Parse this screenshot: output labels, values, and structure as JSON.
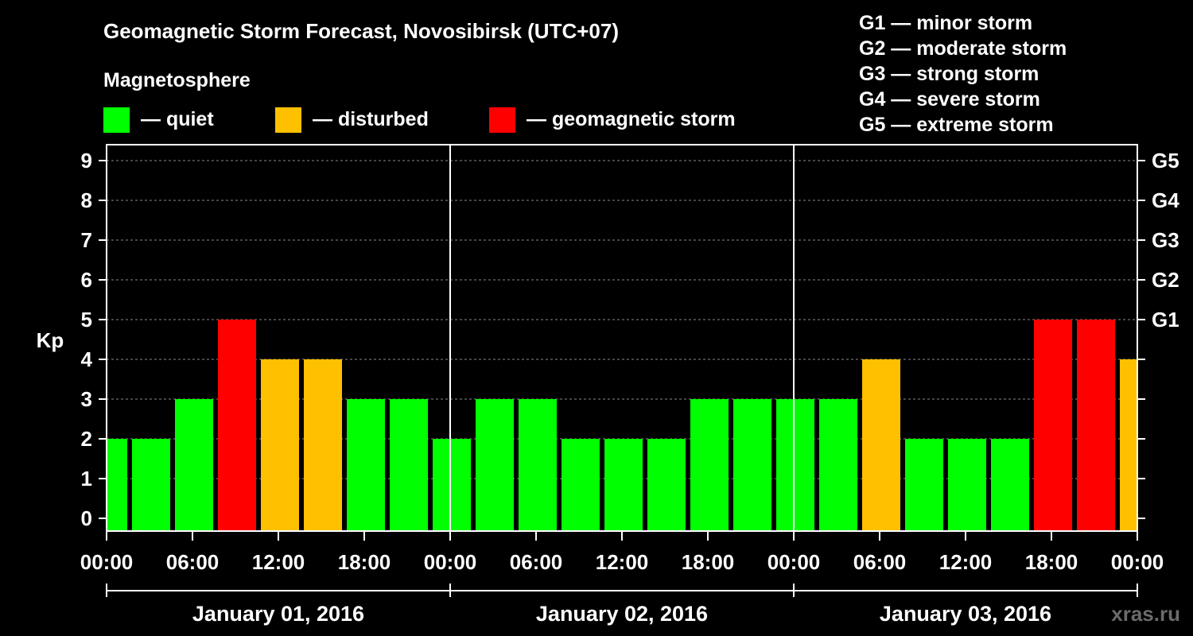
{
  "chart_data": {
    "type": "bar",
    "title": "Geomagnetic Storm Forecast, Novosibirsk (UTC+07)",
    "legend": {
      "heading": "Magnetosphere",
      "items": [
        {
          "label": "— quiet",
          "color": "#00ff00"
        },
        {
          "label": "— disturbed",
          "color": "#ffc000"
        },
        {
          "label": "— geomagnetic storm",
          "color": "#ff0000"
        }
      ]
    },
    "storm_scale": [
      "G1 — minor storm",
      "G2 — moderate storm",
      "G3 — strong storm",
      "G4 — severe storm",
      "G5 — extreme storm"
    ],
    "ylabel": "Kp",
    "ylim": [
      0,
      9
    ],
    "y_ticks": [
      "0",
      "1",
      "2",
      "3",
      "4",
      "5",
      "6",
      "7",
      "8",
      "9"
    ],
    "right_ticks": [
      {
        "kp": 5,
        "label": "G1"
      },
      {
        "kp": 6,
        "label": "G2"
      },
      {
        "kp": 7,
        "label": "G3"
      },
      {
        "kp": 8,
        "label": "G4"
      },
      {
        "kp": 9,
        "label": "G5"
      }
    ],
    "x_tick_labels": [
      "00:00",
      "06:00",
      "12:00",
      "18:00",
      "00:00",
      "06:00",
      "12:00",
      "18:00",
      "00:00",
      "06:00",
      "12:00",
      "18:00",
      "00:00"
    ],
    "days": [
      "January 01, 2016",
      "January 02, 2016",
      "January 03, 2016"
    ],
    "bar_interval_hours": 3,
    "bars": [
      {
        "start_h": 0,
        "kp": 2,
        "level": "quiet"
      },
      {
        "start_h": 3,
        "kp": 2,
        "level": "quiet"
      },
      {
        "start_h": 6,
        "kp": 3,
        "level": "quiet"
      },
      {
        "start_h": 9,
        "kp": 5,
        "level": "storm"
      },
      {
        "start_h": 12,
        "kp": 4,
        "level": "disturbed"
      },
      {
        "start_h": 15,
        "kp": 4,
        "level": "disturbed"
      },
      {
        "start_h": 18,
        "kp": 3,
        "level": "quiet"
      },
      {
        "start_h": 21,
        "kp": 3,
        "level": "quiet"
      },
      {
        "start_h": 24,
        "kp": 2,
        "level": "quiet"
      },
      {
        "start_h": 27,
        "kp": 3,
        "level": "quiet"
      },
      {
        "start_h": 30,
        "kp": 3,
        "level": "quiet"
      },
      {
        "start_h": 33,
        "kp": 2,
        "level": "quiet"
      },
      {
        "start_h": 36,
        "kp": 2,
        "level": "quiet"
      },
      {
        "start_h": 39,
        "kp": 2,
        "level": "quiet"
      },
      {
        "start_h": 42,
        "kp": 3,
        "level": "quiet"
      },
      {
        "start_h": 45,
        "kp": 3,
        "level": "quiet"
      },
      {
        "start_h": 48,
        "kp": 3,
        "level": "quiet"
      },
      {
        "start_h": 51,
        "kp": 3,
        "level": "quiet"
      },
      {
        "start_h": 54,
        "kp": 4,
        "level": "disturbed"
      },
      {
        "start_h": 57,
        "kp": 2,
        "level": "quiet"
      },
      {
        "start_h": 60,
        "kp": 2,
        "level": "quiet"
      },
      {
        "start_h": 63,
        "kp": 2,
        "level": "quiet"
      },
      {
        "start_h": 66,
        "kp": 5,
        "level": "storm"
      },
      {
        "start_h": 69,
        "kp": 5,
        "level": "storm"
      },
      {
        "start_h": 72,
        "kp": 4,
        "level": "disturbed"
      }
    ],
    "level_colors": {
      "quiet": "#00ff00",
      "disturbed": "#ffc000",
      "storm": "#ff0000"
    },
    "grid": true,
    "watermark": "xras.ru"
  }
}
